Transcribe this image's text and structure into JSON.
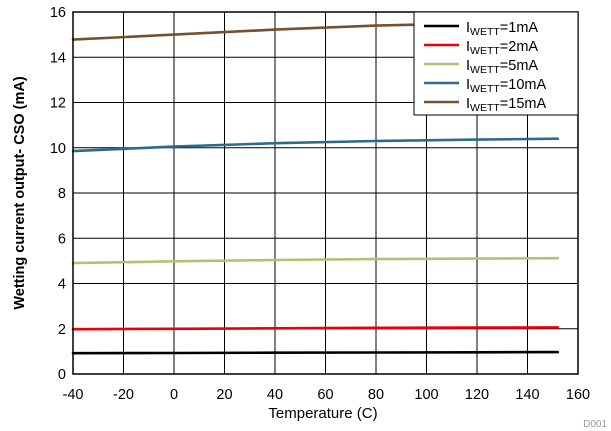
{
  "chart_data": {
    "type": "line",
    "xlabel": "Temperature (C)",
    "ylabel": "Wetting current output- CSO (mA)",
    "xlim": [
      -40,
      160
    ],
    "ylim": [
      0,
      16
    ],
    "xticks": [
      "-40",
      "-20",
      "0",
      "20",
      "40",
      "60",
      "80",
      "100",
      "120",
      "140",
      "160"
    ],
    "yticks": [
      "0",
      "2",
      "4",
      "6",
      "8",
      "10",
      "12",
      "14",
      "16"
    ],
    "grid": true,
    "legend_position": "top-right",
    "series": [
      {
        "name": "I_WETT=1mA",
        "label_main": "I",
        "label_sub": "WETT",
        "label_rest": "=1mA",
        "color": "#000000",
        "x": [
          -40,
          0,
          40,
          80,
          120,
          152
        ],
        "y": [
          0.92,
          0.93,
          0.94,
          0.95,
          0.96,
          0.97
        ]
      },
      {
        "name": "I_WETT=2mA",
        "label_main": "I",
        "label_sub": "WETT",
        "label_rest": "=2mA",
        "color": "#e8000b",
        "x": [
          -40,
          0,
          40,
          80,
          120,
          152
        ],
        "y": [
          1.98,
          2.0,
          2.02,
          2.04,
          2.05,
          2.06
        ]
      },
      {
        "name": "I_WETT=5mA",
        "label_main": "I",
        "label_sub": "WETT",
        "label_rest": "=5mA",
        "color": "#bcbc78",
        "x": [
          -40,
          0,
          40,
          80,
          120,
          152
        ],
        "y": [
          4.9,
          4.98,
          5.04,
          5.08,
          5.1,
          5.12
        ]
      },
      {
        "name": "I_WETT=10mA",
        "label_main": "I",
        "label_sub": "WETT",
        "label_rest": "=10mA",
        "color": "#2e6a8e",
        "x": [
          -40,
          0,
          40,
          80,
          120,
          152
        ],
        "y": [
          9.85,
          10.05,
          10.2,
          10.3,
          10.36,
          10.4
        ]
      },
      {
        "name": "I_WETT=15mA",
        "label_main": "I",
        "label_sub": "WETT",
        "label_rest": "=15mA",
        "color": "#75512e",
        "x": [
          -40,
          0,
          40,
          80,
          120,
          152
        ],
        "y": [
          14.78,
          15.0,
          15.22,
          15.4,
          15.5,
          15.55
        ]
      }
    ],
    "tag": "D001"
  }
}
